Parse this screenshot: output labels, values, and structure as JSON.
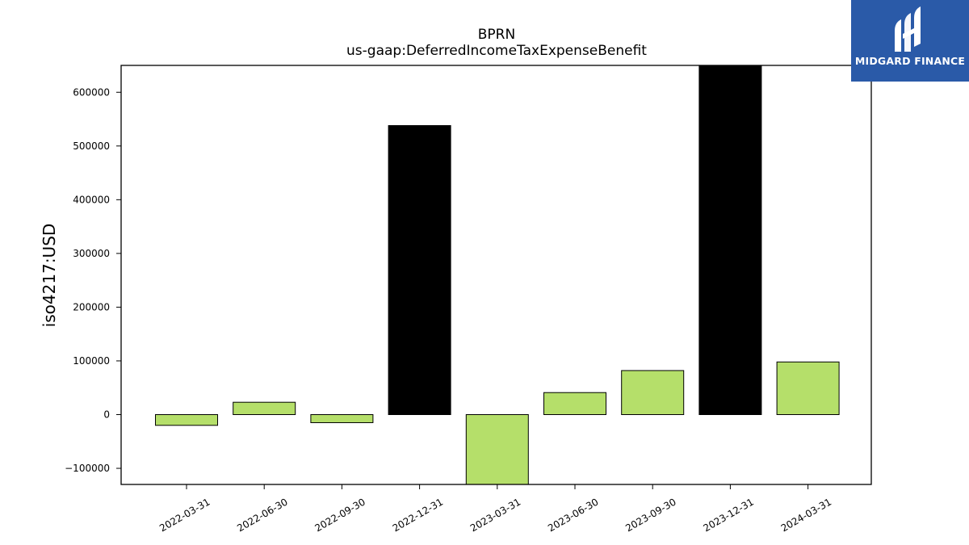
{
  "chart_data": {
    "type": "bar",
    "title": "BPRN",
    "subtitle": "us-gaap:DeferredIncomeTaxExpenseBenefit",
    "xlabel": "",
    "ylabel": "iso4217:USD",
    "ylim": [
      -130000,
      650000
    ],
    "yticks": [
      -100000,
      0,
      100000,
      200000,
      300000,
      400000,
      500000,
      600000
    ],
    "ytick_labels": [
      "−100000",
      "0",
      "100000",
      "200000",
      "300000",
      "400000",
      "500000",
      "600000"
    ],
    "categories": [
      "2022-03-31",
      "2022-06-30",
      "2022-09-30",
      "2022-12-31",
      "2023-03-31",
      "2023-06-30",
      "2023-09-30",
      "2023-12-31",
      "2024-03-31"
    ],
    "values": [
      -20000,
      23000,
      -15000,
      538000,
      -130000,
      41000,
      82000,
      650000,
      98000
    ],
    "bar_colors": [
      "#b5df6a",
      "#b5df6a",
      "#b5df6a",
      "#000000",
      "#b5df6a",
      "#b5df6a",
      "#b5df6a",
      "#000000",
      "#b5df6a"
    ],
    "grid": false
  },
  "logo": {
    "text": "MIDGARD FINANCE",
    "background": "#2a5aa8"
  }
}
